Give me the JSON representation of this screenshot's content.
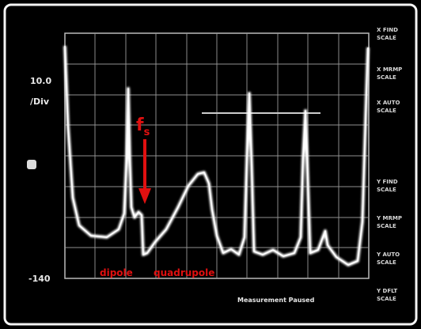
{
  "screen": {
    "scale_top": "10.0",
    "scale_unit": "/Div",
    "scale_bottom": "-140",
    "status": "Measurement Paused",
    "softkeys": [
      [
        "X FIND",
        "SCALE"
      ],
      [
        "X MRMP",
        "SCALE"
      ],
      [
        "X AUTO",
        "SCALE"
      ],
      [
        "Y FIND",
        "SCALE"
      ],
      [
        "Y MRMP",
        "SCALE"
      ],
      [
        "Y AUTO",
        "SCALE"
      ],
      [
        "Y DFLT",
        "SCALE"
      ]
    ]
  },
  "annotations": {
    "marker": "f",
    "marker_subscript": "s",
    "labels": [
      "dipole",
      "quadrupole"
    ]
  }
}
